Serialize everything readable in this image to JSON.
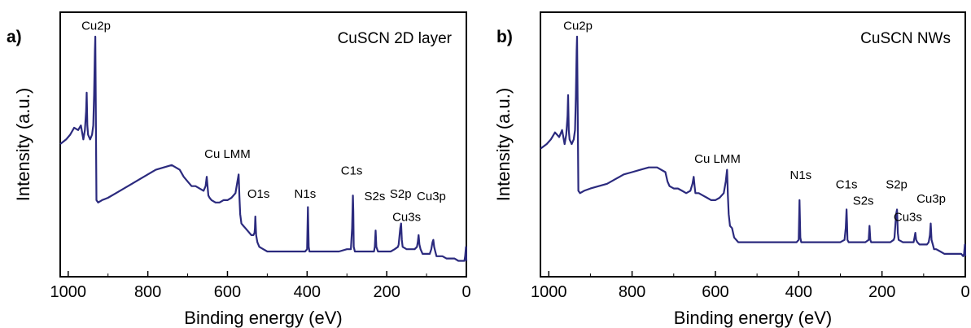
{
  "chart_data": [
    {
      "type": "line",
      "panel_label": "a)",
      "title": "CuSCN 2D layer",
      "xlabel": "Binding energy (eV)",
      "ylabel": "Intensity (a.u.)",
      "xlim": [
        1020,
        0
      ],
      "x_reversed": true,
      "xticks": [
        1000,
        800,
        600,
        400,
        200,
        0
      ],
      "y_ticks_shown": false,
      "grid": false,
      "line_color": "#2b2a7e",
      "series": [
        {
          "x": [
            1020,
            1005,
            995,
            985,
            975,
            968,
            962,
            958,
            955,
            953.5,
            952,
            950,
            945,
            940,
            937,
            935,
            933,
            932,
            931,
            929,
            925,
            915,
            900,
            880,
            860,
            840,
            820,
            800,
            780,
            760,
            740,
            720,
            710,
            700,
            690,
            680,
            670,
            660,
            655,
            652,
            650,
            648,
            645,
            640,
            630,
            620,
            610,
            600,
            590,
            580,
            575,
            572,
            570,
            568,
            565,
            560,
            555,
            545,
            540,
            535,
            532,
            531,
            530,
            528,
            525,
            520,
            510,
            500,
            480,
            460,
            440,
            420,
            405,
            400,
            398,
            396,
            394,
            390,
            380,
            360,
            340,
            320,
            300,
            290,
            287,
            285,
            284,
            283,
            280,
            270,
            260,
            250,
            240,
            232,
            230,
            228,
            226,
            222,
            210,
            200,
            190,
            180,
            172,
            170,
            166,
            164,
            162,
            160,
            150,
            140,
            130,
            124,
            122,
            120,
            118,
            115,
            110,
            100,
            92,
            88,
            85,
            83,
            81,
            78,
            75,
            70,
            60,
            50,
            40,
            30,
            20,
            10,
            5,
            3,
            1,
            0
          ],
          "y": [
            0.54,
            0.56,
            0.58,
            0.61,
            0.6,
            0.62,
            0.56,
            0.6,
            0.68,
            0.76,
            0.62,
            0.58,
            0.56,
            0.58,
            0.62,
            0.75,
            0.94,
            1.0,
            0.8,
            0.3,
            0.29,
            0.3,
            0.31,
            0.33,
            0.35,
            0.37,
            0.39,
            0.41,
            0.43,
            0.44,
            0.45,
            0.43,
            0.4,
            0.38,
            0.36,
            0.36,
            0.35,
            0.34,
            0.36,
            0.4,
            0.36,
            0.32,
            0.31,
            0.3,
            0.29,
            0.29,
            0.3,
            0.3,
            0.31,
            0.33,
            0.38,
            0.41,
            0.32,
            0.24,
            0.2,
            0.19,
            0.18,
            0.16,
            0.15,
            0.15,
            0.16,
            0.18,
            0.23,
            0.15,
            0.12,
            0.1,
            0.09,
            0.08,
            0.08,
            0.08,
            0.08,
            0.08,
            0.08,
            0.09,
            0.27,
            0.1,
            0.08,
            0.08,
            0.08,
            0.08,
            0.08,
            0.08,
            0.09,
            0.09,
            0.18,
            0.32,
            0.25,
            0.1,
            0.08,
            0.08,
            0.08,
            0.08,
            0.08,
            0.08,
            0.1,
            0.17,
            0.1,
            0.08,
            0.08,
            0.08,
            0.08,
            0.09,
            0.1,
            0.11,
            0.18,
            0.2,
            0.13,
            0.1,
            0.09,
            0.09,
            0.09,
            0.1,
            0.12,
            0.15,
            0.11,
            0.09,
            0.07,
            0.07,
            0.07,
            0.09,
            0.12,
            0.13,
            0.1,
            0.08,
            0.06,
            0.06,
            0.06,
            0.05,
            0.05,
            0.05,
            0.04,
            0.04,
            0.04,
            0.06,
            0.1,
            0.04
          ]
        }
      ],
      "annotations": [
        {
          "text": "Cu2p",
          "x": 930,
          "y": 1.03
        },
        {
          "text": "Cu LMM",
          "x": 600,
          "y": 0.48
        },
        {
          "text": "O1s",
          "x": 522,
          "y": 0.31
        },
        {
          "text": "N1s",
          "x": 405,
          "y": 0.31
        },
        {
          "text": "C1s",
          "x": 288,
          "y": 0.41
        },
        {
          "text": "S2s",
          "x": 230,
          "y": 0.3
        },
        {
          "text": "S2p",
          "x": 165,
          "y": 0.31
        },
        {
          "text": "Cu3s",
          "x": 150,
          "y": 0.21
        },
        {
          "text": "Cu3p",
          "x": 88,
          "y": 0.3
        }
      ]
    },
    {
      "type": "line",
      "panel_label": "b)",
      "title": "CuSCN NWs",
      "xlabel": "Binding energy (eV)",
      "ylabel": "Intensity (a.u.)",
      "xlim": [
        1020,
        0
      ],
      "x_reversed": true,
      "xticks": [
        1000,
        800,
        600,
        400,
        200,
        0
      ],
      "y_ticks_shown": false,
      "grid": false,
      "line_color": "#2b2a7e",
      "series": [
        {
          "x": [
            1020,
            1005,
            995,
            985,
            975,
            968,
            962,
            958,
            955,
            953.5,
            952,
            950,
            945,
            940,
            937,
            935,
            933,
            932,
            931,
            929,
            925,
            915,
            900,
            880,
            860,
            840,
            820,
            800,
            780,
            760,
            740,
            720,
            715,
            710,
            700,
            690,
            680,
            670,
            660,
            655,
            652,
            650,
            648,
            645,
            640,
            630,
            620,
            610,
            600,
            590,
            580,
            575,
            572,
            570,
            568,
            565,
            560,
            555,
            545,
            540,
            530,
            520,
            510,
            500,
            480,
            460,
            440,
            420,
            405,
            400,
            398,
            396,
            394,
            390,
            380,
            360,
            340,
            320,
            300,
            290,
            287,
            285,
            284,
            283,
            280,
            270,
            260,
            250,
            240,
            232,
            230,
            228,
            226,
            222,
            210,
            200,
            190,
            180,
            172,
            170,
            166,
            164,
            162,
            160,
            150,
            140,
            130,
            124,
            122,
            120,
            118,
            115,
            110,
            100,
            92,
            88,
            85,
            83,
            81,
            78,
            75,
            70,
            60,
            50,
            40,
            30,
            20,
            10,
            5,
            3,
            1,
            0
          ],
          "y": [
            0.52,
            0.54,
            0.56,
            0.59,
            0.57,
            0.6,
            0.54,
            0.58,
            0.66,
            0.75,
            0.6,
            0.56,
            0.54,
            0.56,
            0.6,
            0.74,
            0.94,
            1.0,
            0.8,
            0.34,
            0.33,
            0.34,
            0.35,
            0.36,
            0.37,
            0.39,
            0.41,
            0.42,
            0.43,
            0.44,
            0.44,
            0.42,
            0.38,
            0.36,
            0.35,
            0.35,
            0.34,
            0.33,
            0.34,
            0.37,
            0.4,
            0.36,
            0.33,
            0.33,
            0.33,
            0.32,
            0.31,
            0.3,
            0.3,
            0.31,
            0.33,
            0.38,
            0.43,
            0.32,
            0.24,
            0.19,
            0.18,
            0.14,
            0.12,
            0.12,
            0.12,
            0.12,
            0.12,
            0.12,
            0.12,
            0.12,
            0.12,
            0.12,
            0.12,
            0.13,
            0.3,
            0.14,
            0.12,
            0.12,
            0.12,
            0.12,
            0.12,
            0.12,
            0.12,
            0.13,
            0.18,
            0.26,
            0.2,
            0.13,
            0.12,
            0.12,
            0.12,
            0.12,
            0.12,
            0.13,
            0.19,
            0.13,
            0.12,
            0.12,
            0.12,
            0.12,
            0.12,
            0.12,
            0.13,
            0.14,
            0.24,
            0.26,
            0.16,
            0.13,
            0.12,
            0.12,
            0.12,
            0.12,
            0.14,
            0.16,
            0.13,
            0.12,
            0.11,
            0.11,
            0.11,
            0.12,
            0.15,
            0.2,
            0.13,
            0.11,
            0.09,
            0.09,
            0.08,
            0.07,
            0.07,
            0.07,
            0.07,
            0.07,
            0.06,
            0.07,
            0.11,
            0.06
          ]
        }
      ],
      "annotations": [
        {
          "text": "Cu2p",
          "x": 930,
          "y": 1.03
        },
        {
          "text": "Cu LMM",
          "x": 595,
          "y": 0.46
        },
        {
          "text": "N1s",
          "x": 395,
          "y": 0.39
        },
        {
          "text": "C1s",
          "x": 285,
          "y": 0.35
        },
        {
          "text": "S2s",
          "x": 245,
          "y": 0.28
        },
        {
          "text": "S2p",
          "x": 165,
          "y": 0.35
        },
        {
          "text": "Cu3s",
          "x": 138,
          "y": 0.21
        },
        {
          "text": "Cu3p",
          "x": 82,
          "y": 0.29
        }
      ]
    }
  ]
}
